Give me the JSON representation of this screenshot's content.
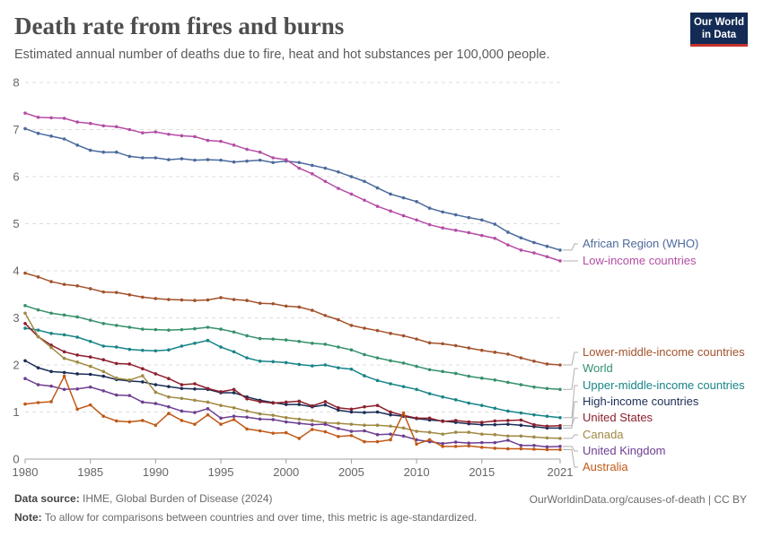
{
  "header": {
    "title": "Death rate from fires and burns",
    "subtitle": "Estimated annual number of deaths due to fire, heat and hot substances per 100,000 people.",
    "logo_line1": "Our World",
    "logo_line2": "in Data"
  },
  "footer": {
    "source_label": "Data source:",
    "source_text": "IHME, Global Burden of Disease (2024)",
    "url_text": "OurWorldinData.org/causes-of-death | CC BY",
    "note_label": "Note:",
    "note_text": "To allow for comparisons between countries and over time, this metric is age-standardized."
  },
  "chart_data": {
    "type": "line",
    "x": [
      1980,
      1981,
      1982,
      1983,
      1984,
      1985,
      1986,
      1987,
      1988,
      1989,
      1990,
      1991,
      1992,
      1993,
      1994,
      1995,
      1996,
      1997,
      1998,
      1999,
      2000,
      2001,
      2002,
      2003,
      2004,
      2005,
      2006,
      2007,
      2008,
      2009,
      2010,
      2011,
      2012,
      2013,
      2014,
      2015,
      2016,
      2017,
      2018,
      2019,
      2020,
      2021
    ],
    "x_ticks": [
      1980,
      1985,
      1990,
      1995,
      2000,
      2005,
      2010,
      2015,
      2021
    ],
    "y_ticks": [
      0,
      1,
      2,
      3,
      4,
      5,
      6,
      7,
      8
    ],
    "xlim": [
      1980,
      2021
    ],
    "ylim": [
      0,
      8
    ],
    "grid": "horizontal dashed",
    "legend": "right, labels at line ends",
    "series": [
      {
        "name": "African Region (WHO)",
        "color": "#4c6a9c",
        "values": [
          7.02,
          6.92,
          6.86,
          6.8,
          6.67,
          6.56,
          6.52,
          6.52,
          6.43,
          6.4,
          6.4,
          6.36,
          6.38,
          6.35,
          6.36,
          6.35,
          6.31,
          6.33,
          6.35,
          6.3,
          6.33,
          6.3,
          6.24,
          6.18,
          6.1,
          6.0,
          5.9,
          5.76,
          5.63,
          5.55,
          5.47,
          5.33,
          5.25,
          5.19,
          5.13,
          5.08,
          4.99,
          4.82,
          4.7,
          4.6,
          4.52,
          4.44
        ]
      },
      {
        "name": "Low-income countries",
        "color": "#b44ca4",
        "values": [
          7.35,
          7.26,
          7.25,
          7.24,
          7.16,
          7.13,
          7.08,
          7.06,
          7.0,
          6.93,
          6.95,
          6.9,
          6.87,
          6.85,
          6.77,
          6.75,
          6.67,
          6.58,
          6.52,
          6.4,
          6.36,
          6.18,
          6.06,
          5.9,
          5.75,
          5.63,
          5.5,
          5.37,
          5.27,
          5.17,
          5.08,
          4.98,
          4.91,
          4.86,
          4.81,
          4.75,
          4.69,
          4.55,
          4.44,
          4.38,
          4.3,
          4.21
        ]
      },
      {
        "name": "Lower-middle-income countries",
        "color": "#a2522c",
        "values": [
          3.95,
          3.87,
          3.77,
          3.71,
          3.68,
          3.62,
          3.55,
          3.54,
          3.49,
          3.44,
          3.41,
          3.39,
          3.38,
          3.37,
          3.38,
          3.43,
          3.39,
          3.37,
          3.31,
          3.3,
          3.25,
          3.23,
          3.16,
          3.05,
          2.96,
          2.84,
          2.78,
          2.73,
          2.67,
          2.62,
          2.55,
          2.47,
          2.45,
          2.41,
          2.36,
          2.31,
          2.27,
          2.23,
          2.15,
          2.08,
          2.02,
          2.0
        ]
      },
      {
        "name": "World",
        "color": "#36906b",
        "values": [
          3.26,
          3.17,
          3.1,
          3.06,
          3.02,
          2.95,
          2.88,
          2.84,
          2.8,
          2.76,
          2.75,
          2.74,
          2.75,
          2.77,
          2.8,
          2.76,
          2.7,
          2.62,
          2.56,
          2.55,
          2.53,
          2.5,
          2.46,
          2.44,
          2.38,
          2.32,
          2.22,
          2.15,
          2.09,
          2.04,
          1.97,
          1.9,
          1.86,
          1.82,
          1.76,
          1.72,
          1.68,
          1.63,
          1.58,
          1.53,
          1.5,
          1.48
        ]
      },
      {
        "name": "Upper-middle-income countries",
        "color": "#188487",
        "values": [
          2.78,
          2.74,
          2.67,
          2.64,
          2.59,
          2.5,
          2.4,
          2.38,
          2.33,
          2.31,
          2.3,
          2.32,
          2.4,
          2.46,
          2.52,
          2.38,
          2.28,
          2.15,
          2.08,
          2.07,
          2.05,
          2.01,
          1.98,
          2.0,
          1.94,
          1.91,
          1.77,
          1.67,
          1.6,
          1.54,
          1.48,
          1.39,
          1.32,
          1.26,
          1.19,
          1.14,
          1.08,
          1.02,
          0.98,
          0.94,
          0.91,
          0.88
        ]
      },
      {
        "name": "High-income countries",
        "color": "#1b2d56",
        "values": [
          2.09,
          1.94,
          1.86,
          1.84,
          1.81,
          1.8,
          1.76,
          1.69,
          1.66,
          1.64,
          1.58,
          1.54,
          1.5,
          1.49,
          1.48,
          1.41,
          1.41,
          1.32,
          1.25,
          1.2,
          1.16,
          1.16,
          1.11,
          1.15,
          1.04,
          1.0,
          0.99,
          1.0,
          0.94,
          0.91,
          0.86,
          0.83,
          0.81,
          0.78,
          0.75,
          0.73,
          0.73,
          0.74,
          0.72,
          0.69,
          0.66,
          0.66
        ]
      },
      {
        "name": "United States",
        "color": "#8c1f2c",
        "values": [
          2.88,
          2.6,
          2.42,
          2.28,
          2.21,
          2.17,
          2.11,
          2.03,
          2.02,
          1.92,
          1.81,
          1.71,
          1.58,
          1.6,
          1.5,
          1.43,
          1.48,
          1.28,
          1.22,
          1.19,
          1.21,
          1.23,
          1.13,
          1.22,
          1.09,
          1.06,
          1.11,
          1.14,
          1.0,
          0.93,
          0.87,
          0.87,
          0.8,
          0.82,
          0.79,
          0.78,
          0.81,
          0.82,
          0.83,
          0.73,
          0.7,
          0.71
        ]
      },
      {
        "name": "Canada",
        "color": "#a08943",
        "values": [
          3.1,
          2.6,
          2.37,
          2.14,
          2.06,
          1.97,
          1.86,
          1.72,
          1.68,
          1.77,
          1.42,
          1.32,
          1.29,
          1.25,
          1.21,
          1.14,
          1.09,
          1.02,
          0.96,
          0.93,
          0.88,
          0.85,
          0.82,
          0.77,
          0.76,
          0.74,
          0.72,
          0.72,
          0.7,
          0.66,
          0.59,
          0.57,
          0.53,
          0.57,
          0.57,
          0.53,
          0.52,
          0.49,
          0.49,
          0.47,
          0.45,
          0.44
        ]
      },
      {
        "name": "United Kingdom",
        "color": "#6d3e91",
        "values": [
          1.71,
          1.58,
          1.55,
          1.48,
          1.49,
          1.53,
          1.45,
          1.36,
          1.35,
          1.21,
          1.18,
          1.11,
          1.02,
          0.99,
          1.07,
          0.87,
          0.91,
          0.89,
          0.85,
          0.84,
          0.79,
          0.76,
          0.73,
          0.74,
          0.65,
          0.59,
          0.6,
          0.52,
          0.53,
          0.49,
          0.41,
          0.37,
          0.33,
          0.36,
          0.34,
          0.35,
          0.35,
          0.4,
          0.29,
          0.29,
          0.26,
          0.27
        ]
      },
      {
        "name": "Australia",
        "color": "#c05917",
        "values": [
          1.17,
          1.2,
          1.22,
          1.76,
          1.06,
          1.15,
          0.91,
          0.81,
          0.79,
          0.82,
          0.72,
          0.97,
          0.82,
          0.74,
          0.94,
          0.74,
          0.84,
          0.64,
          0.6,
          0.55,
          0.56,
          0.44,
          0.63,
          0.58,
          0.48,
          0.5,
          0.37,
          0.37,
          0.41,
          0.98,
          0.32,
          0.41,
          0.27,
          0.27,
          0.28,
          0.25,
          0.23,
          0.22,
          0.22,
          0.21,
          0.2,
          0.2
        ]
      }
    ]
  }
}
